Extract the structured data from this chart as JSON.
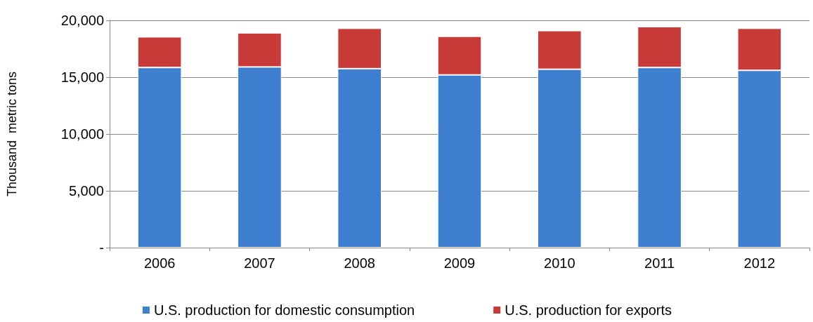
{
  "chart_data": {
    "type": "bar",
    "stacked": true,
    "ylabel": "Thousand  metric tons",
    "categories": [
      "2006",
      "2007",
      "2008",
      "2009",
      "2010",
      "2011",
      "2012"
    ],
    "series": [
      {
        "name": "U.S. production for domestic consumption",
        "color": "#3f7fd0",
        "values": [
          15850,
          15900,
          15750,
          15200,
          15700,
          15850,
          15600
        ]
      },
      {
        "name": "U.S. production for exports",
        "color": "#c73a38",
        "values": [
          2700,
          3000,
          3550,
          3400,
          3400,
          3600,
          3700
        ]
      }
    ],
    "ylim": [
      0,
      20000
    ],
    "yticks": [
      {
        "value": 0,
        "label": "-"
      },
      {
        "value": 5000,
        "label": "5,000"
      },
      {
        "value": 10000,
        "label": "10,000"
      },
      {
        "value": 15000,
        "label": "15,000"
      },
      {
        "value": 20000,
        "label": "20,000"
      }
    ],
    "grid": "y",
    "legend": "bottom"
  }
}
